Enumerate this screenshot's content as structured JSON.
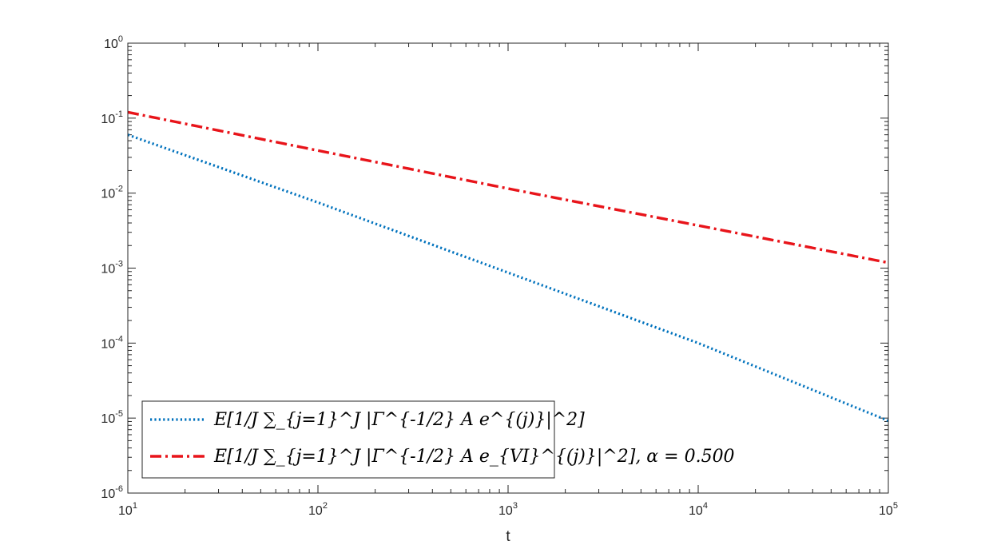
{
  "chart_data": {
    "type": "line",
    "xscale": "log",
    "yscale": "log",
    "xlim": [
      10,
      100000
    ],
    "ylim": [
      1e-06,
      1
    ],
    "xlabel": "t",
    "ylabel": "",
    "title": "",
    "grid": false,
    "legend_placement": "bottom-left",
    "x_ticks": [
      {
        "value": 10,
        "base": "10",
        "exp": "1"
      },
      {
        "value": 100,
        "base": "10",
        "exp": "2"
      },
      {
        "value": 1000,
        "base": "10",
        "exp": "3"
      },
      {
        "value": 10000,
        "base": "10",
        "exp": "4"
      },
      {
        "value": 100000,
        "base": "10",
        "exp": "5"
      }
    ],
    "y_ticks": [
      {
        "value": 1,
        "base": "10",
        "exp": "0"
      },
      {
        "value": 0.1,
        "base": "10",
        "exp": "-1"
      },
      {
        "value": 0.01,
        "base": "10",
        "exp": "-2"
      },
      {
        "value": 0.001,
        "base": "10",
        "exp": "-3"
      },
      {
        "value": 0.0001,
        "base": "10",
        "exp": "-4"
      },
      {
        "value": 1e-05,
        "base": "10",
        "exp": "-5"
      },
      {
        "value": 1e-06,
        "base": "10",
        "exp": "-6"
      }
    ],
    "series": [
      {
        "name": "E[1/J ∑_{j=1}^J |Γ^{-1/2} A e^{(j)}|^2]",
        "color": "#0072bd",
        "style": "dotted",
        "x": [
          10,
          100,
          1000,
          10000,
          100000
        ],
        "y": [
          0.06,
          0.0075,
          0.00087,
          0.0001,
          9.2e-06
        ]
      },
      {
        "name": "E[1/J ∑_{j=1}^J |Γ^{-1/2} A e_{VI}^{(j)}|^2], α = 0.500",
        "color": "#e8141a",
        "style": "dash-dot",
        "x": [
          10,
          100,
          1000,
          10000,
          100000
        ],
        "y": [
          0.12,
          0.037,
          0.0115,
          0.0037,
          0.00118
        ]
      }
    ]
  }
}
